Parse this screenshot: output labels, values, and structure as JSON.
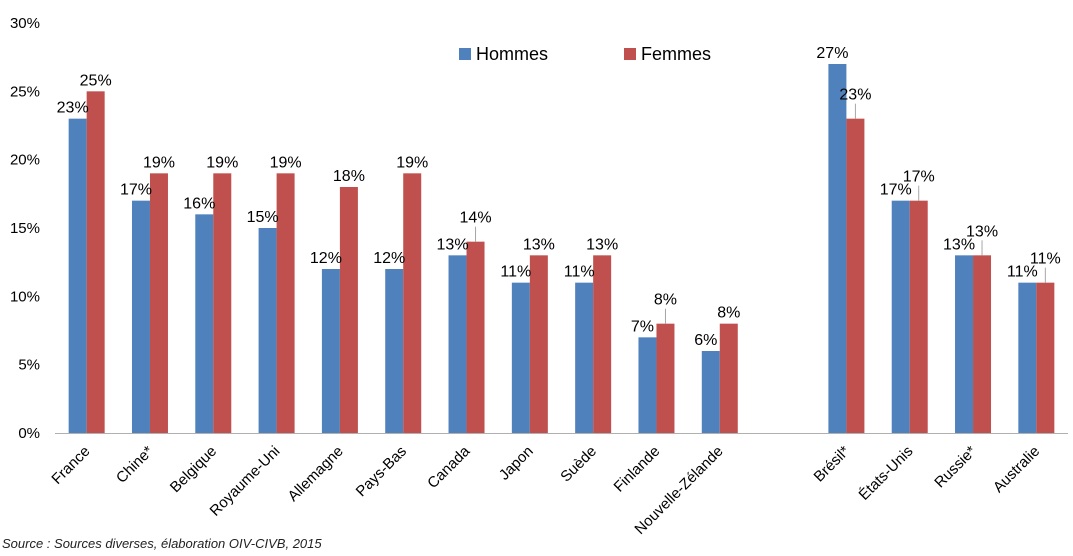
{
  "chart_data": {
    "type": "bar",
    "categories": [
      "France",
      "Chine*",
      "Belgique",
      "Royaume-Uni",
      "Allemagne",
      "Pays-Bas",
      "Canada",
      "Japon",
      "Suède",
      "Finlande",
      "Nouvelle-Zélande",
      "Brésil*",
      "États-Unis",
      "Russie*",
      "Australie"
    ],
    "series": [
      {
        "name": "Hommes",
        "color": "#4F81BD",
        "values": [
          23,
          17,
          16,
          15,
          12,
          12,
          13,
          11,
          11,
          7,
          6,
          27,
          17,
          13,
          11
        ]
      },
      {
        "name": "Femmes",
        "color": "#C0504D",
        "values": [
          25,
          19,
          19,
          19,
          18,
          19,
          14,
          13,
          13,
          8,
          8,
          23,
          17,
          13,
          11
        ]
      }
    ],
    "ylim": [
      0,
      30
    ],
    "yticks": [
      "0%",
      "5%",
      "10%",
      "15%",
      "20%",
      "25%",
      "30%"
    ],
    "value_suffix": "%",
    "grid": false,
    "legend_position": "top-center",
    "title": "",
    "xlabel": "",
    "ylabel": ""
  },
  "source_note": "Source : Sources diverses, élaboration OIV-CIVB, 2015"
}
